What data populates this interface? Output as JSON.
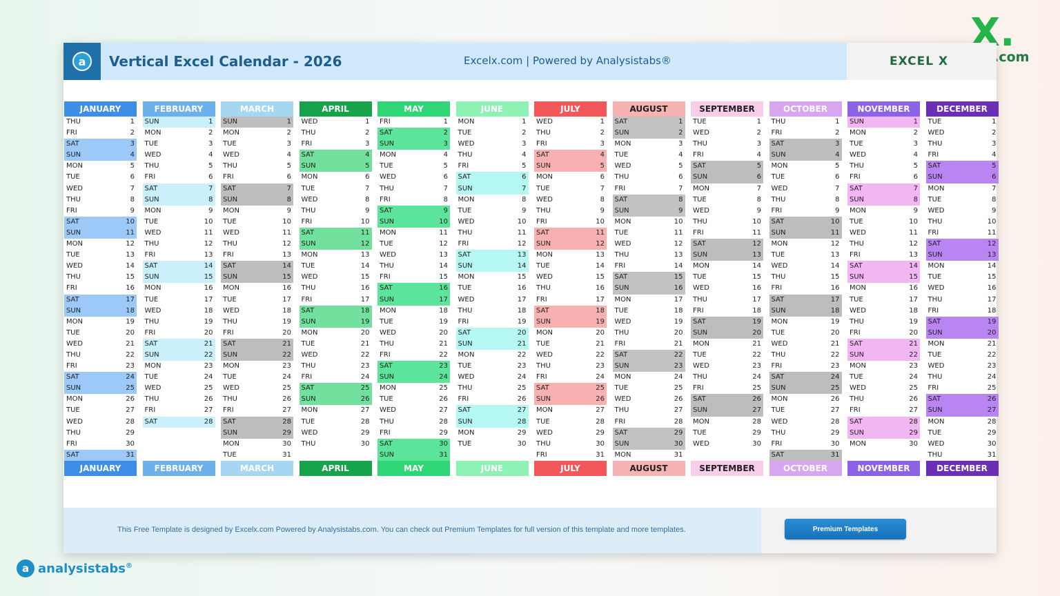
{
  "header": {
    "title": "Vertical Excel Calendar - 2026",
    "subtitle": "Excelx.com | Powered by Analysistabs®",
    "logo_text": "EXCEL X",
    "corner_logo_mark": "X.",
    "corner_logo_text": "Excelx.com"
  },
  "footer": {
    "text": "This Free Template is designed by Excelx.com Powered by Analysistabs.com. You can check out Premium Templates for full version of this template and more templates.",
    "button_label": "Premium Templates"
  },
  "brand": {
    "name": "analysistabs",
    "mark": "®"
  },
  "months": [
    {
      "name": "JANUARY",
      "start_dow": 3,
      "days": 31,
      "header_color": "#3d8ee6",
      "weekend_color": "#9cc9f8",
      "header_text_dark": false
    },
    {
      "name": "FEBRUARY",
      "start_dow": 6,
      "days": 28,
      "header_color": "#6cb1ea",
      "weekend_color": "#c9f0fb",
      "header_text_dark": false
    },
    {
      "name": "MARCH",
      "start_dow": 6,
      "days": 31,
      "header_color": "#a7d6f3",
      "weekend_color": "#bdbdbd",
      "header_text_dark": false
    },
    {
      "name": "APRIL",
      "start_dow": 2,
      "days": 30,
      "header_color": "#17a34a",
      "weekend_color": "#73e19e",
      "header_text_dark": false
    },
    {
      "name": "MAY",
      "start_dow": 4,
      "days": 31,
      "header_color": "#2fd676",
      "weekend_color": "#5ce59a",
      "header_text_dark": false
    },
    {
      "name": "JUNE",
      "start_dow": 0,
      "days": 30,
      "header_color": "#8df2b4",
      "weekend_color": "#b5f7f3",
      "header_text_dark": false
    },
    {
      "name": "JULY",
      "start_dow": 2,
      "days": 31,
      "header_color": "#f25759",
      "weekend_color": "#f7b1b1",
      "header_text_dark": false
    },
    {
      "name": "AUGUST",
      "start_dow": 5,
      "days": 31,
      "header_color": "#f7b3b3",
      "weekend_color": "#c2c2c2",
      "header_text_dark": true
    },
    {
      "name": "SEPTEMBER",
      "start_dow": 1,
      "days": 30,
      "header_color": "#f8cde9",
      "weekend_color": "#bdbdbd",
      "header_text_dark": true
    },
    {
      "name": "OCTOBER",
      "start_dow": 3,
      "days": 31,
      "header_color": "#d8a6f0",
      "weekend_color": "#bdbdbd",
      "header_text_dark": false
    },
    {
      "name": "NOVEMBER",
      "start_dow": 6,
      "days": 30,
      "header_color": "#8c63e6",
      "weekend_color": "#f2b7f2",
      "header_text_dark": false
    },
    {
      "name": "DECEMBER",
      "start_dow": 1,
      "days": 31,
      "header_color": "#6a2fb5",
      "weekend_color": "#b985f2",
      "header_text_dark": false
    }
  ],
  "weekday_names": [
    "MON",
    "TUE",
    "WED",
    "THU",
    "FRI",
    "SAT",
    "SUN"
  ]
}
